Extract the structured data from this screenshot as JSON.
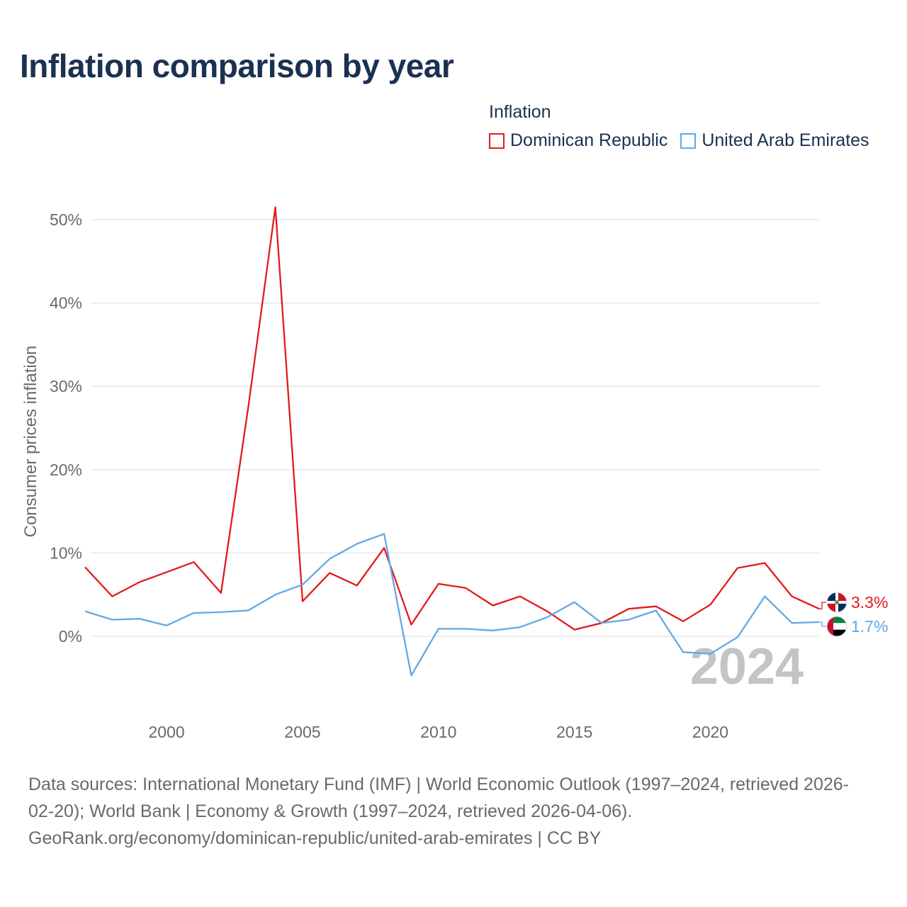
{
  "title": "Inflation comparison by year",
  "legend": {
    "title": "Inflation",
    "items": [
      {
        "label": "Dominican Republic",
        "color": "#e31a1c"
      },
      {
        "label": "United Arab Emirates",
        "color": "#62a8e5"
      }
    ]
  },
  "footer": {
    "line1": "Data sources: International Monetary Fund (IMF) | World Economic Outlook (1997–2024, retrieved 2026-",
    "line2": "02-20); World Bank | Economy & Growth (1997–2024, retrieved 2026-04-06).",
    "line3": "GeoRank.org/economy/dominican-republic/united-arab-emirates | CC BY"
  },
  "chart_data": {
    "type": "line",
    "title": "Inflation comparison by year",
    "xlabel": "",
    "ylabel": "Consumer prices inflation",
    "xlim": [
      1997,
      2024
    ],
    "ylim": [
      -10,
      52
    ],
    "grid": true,
    "x_ticks": [
      {
        "value": 2000,
        "label": "2000"
      },
      {
        "value": 2005,
        "label": "2005"
      },
      {
        "value": 2010,
        "label": "2010"
      },
      {
        "value": 2015,
        "label": "2015"
      },
      {
        "value": 2020,
        "label": "2020"
      }
    ],
    "y_ticks": [
      {
        "value": 0,
        "label": "0%"
      },
      {
        "value": 10,
        "label": "10%"
      },
      {
        "value": 20,
        "label": "20%"
      },
      {
        "value": 30,
        "label": "30%"
      },
      {
        "value": 40,
        "label": "40%"
      },
      {
        "value": 50,
        "label": "50%"
      }
    ],
    "year_watermark": "2024",
    "x": [
      1997,
      1998,
      1999,
      2000,
      2001,
      2002,
      2003,
      2004,
      2005,
      2006,
      2007,
      2008,
      2009,
      2010,
      2011,
      2012,
      2013,
      2014,
      2015,
      2016,
      2017,
      2018,
      2019,
      2020,
      2021,
      2022,
      2023,
      2024
    ],
    "series": [
      {
        "name": "Dominican Republic",
        "color": "#e31a1c",
        "end_label": "3.3%",
        "flag": "dominican-republic-flag",
        "values": [
          8.3,
          4.8,
          6.5,
          7.7,
          8.9,
          5.2,
          27.4,
          51.5,
          4.2,
          7.6,
          6.1,
          10.6,
          1.4,
          6.3,
          5.8,
          3.7,
          4.8,
          3.0,
          0.8,
          1.6,
          3.3,
          3.6,
          1.8,
          3.8,
          8.2,
          8.8,
          4.8,
          3.3
        ]
      },
      {
        "name": "United Arab Emirates",
        "color": "#62a8e5",
        "end_label": "1.7%",
        "flag": "united-arab-emirates-flag",
        "values": [
          3.0,
          2.0,
          2.1,
          1.3,
          2.8,
          2.9,
          3.1,
          5.0,
          6.2,
          9.3,
          11.1,
          12.3,
          -4.7,
          0.9,
          0.9,
          0.7,
          1.1,
          2.3,
          4.1,
          1.6,
          2.0,
          3.1,
          -1.9,
          -2.1,
          -0.1,
          4.8,
          1.6,
          1.7
        ]
      }
    ]
  }
}
